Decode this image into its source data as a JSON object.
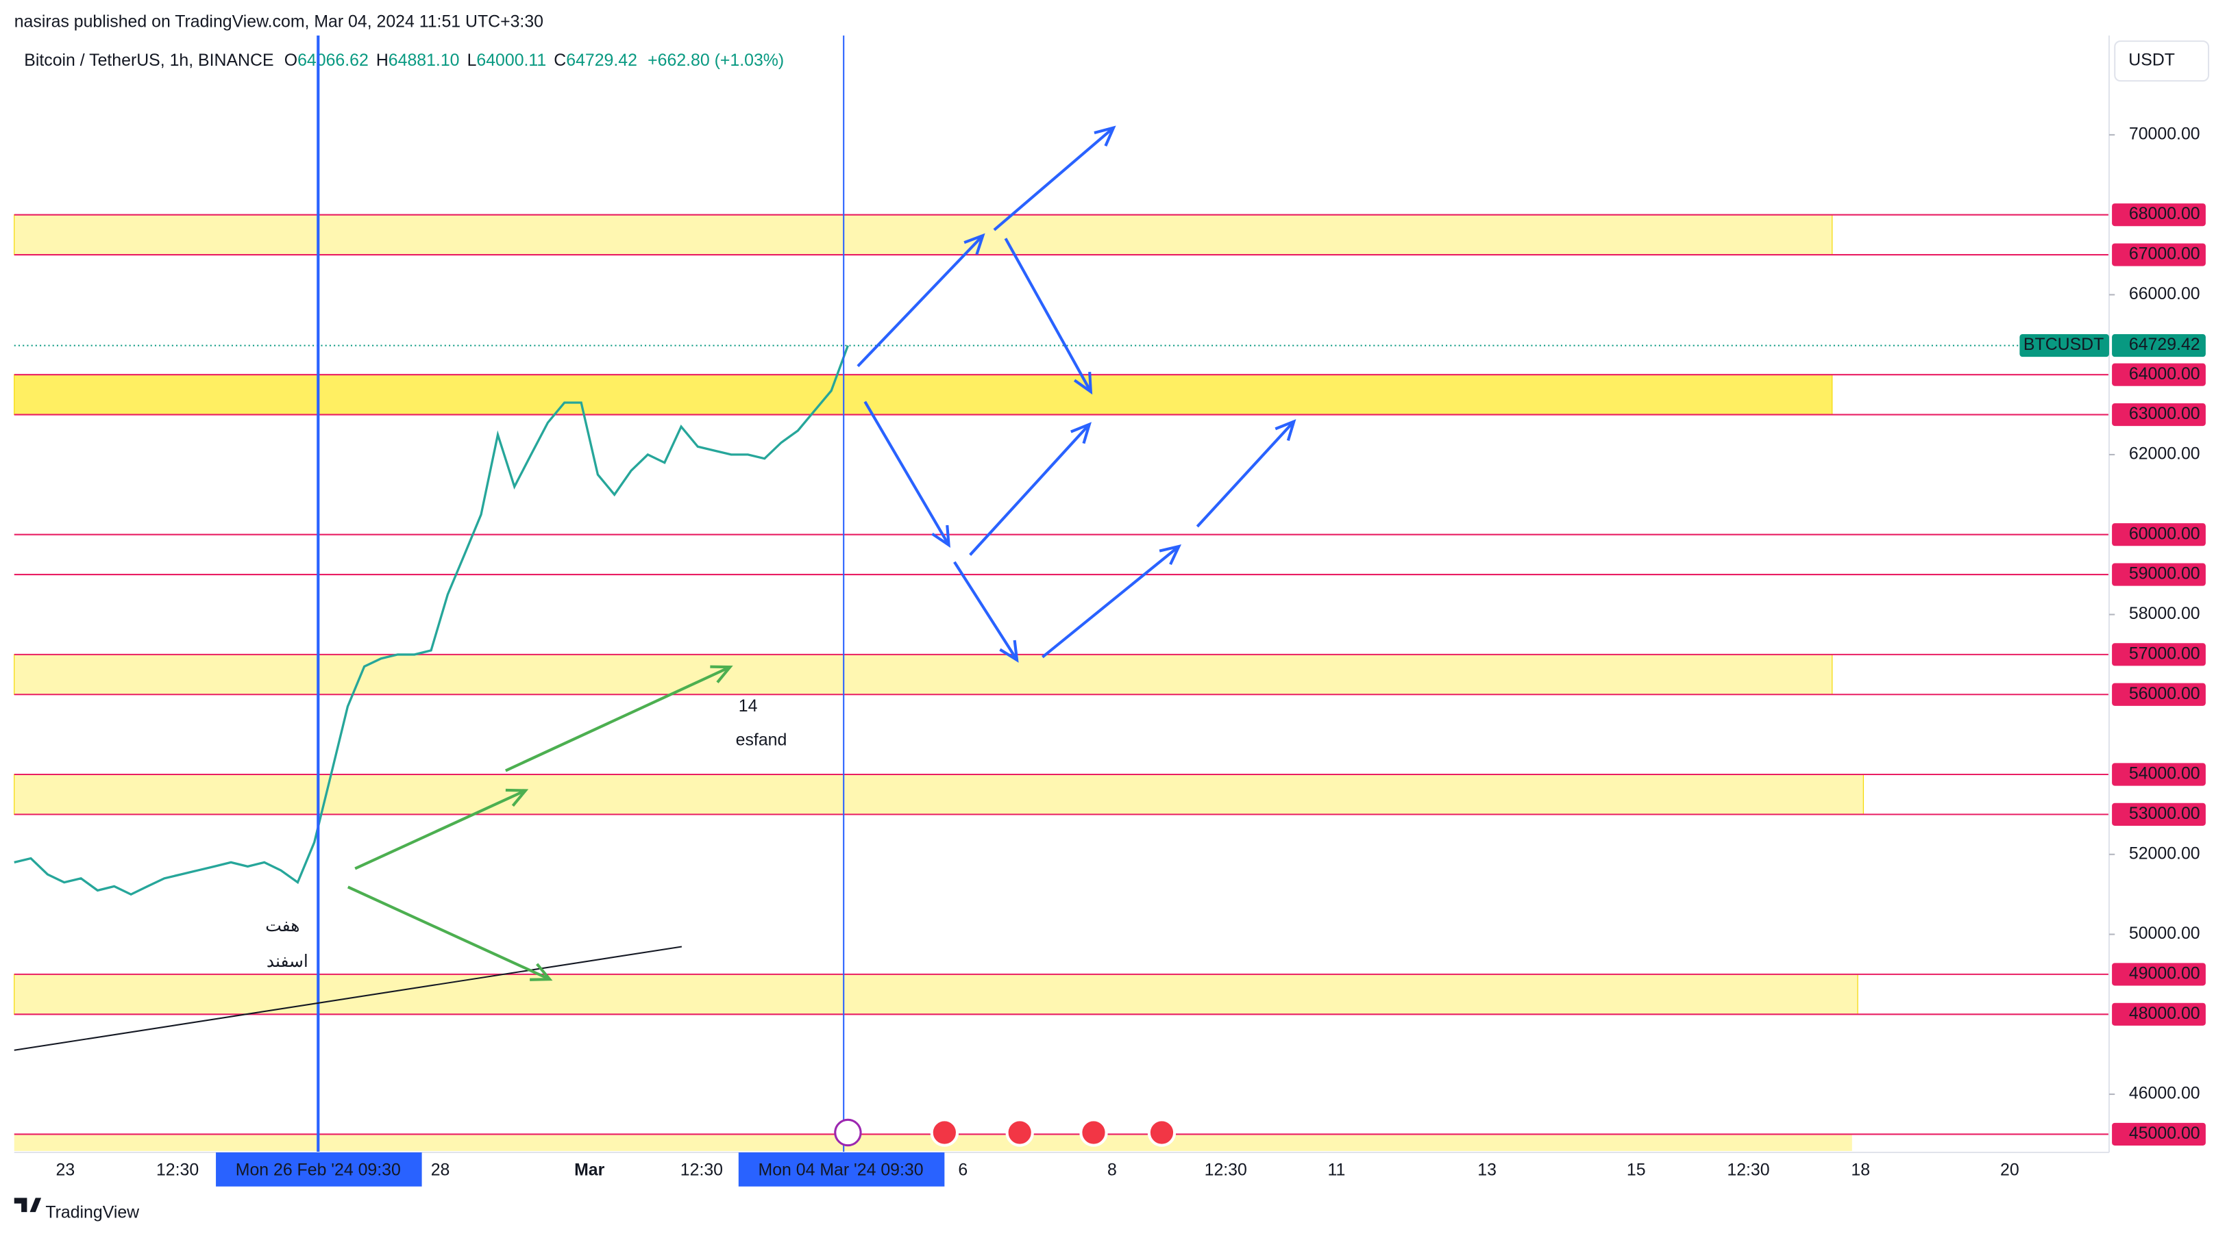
{
  "header": {
    "published": "nasiras published on TradingView.com, Mar 04, 2024 11:51 UTC+3:30"
  },
  "legend": {
    "symbol": "Bitcoin / TetherUS, 1h, BINANCE",
    "o_label": "O",
    "open": "64066.62",
    "h_label": "H",
    "high": "64881.10",
    "l_label": "L",
    "low": "64000.11",
    "c_label": "C",
    "close": "64729.42",
    "change": "+662.80 (+1.03%)"
  },
  "currency": "USDT",
  "yticks": [
    {
      "value": 70000,
      "label": "70000.00"
    },
    {
      "value": 66000,
      "label": "66000.00"
    },
    {
      "value": 62000,
      "label": "62000.00"
    },
    {
      "value": 58000,
      "label": "58000.00"
    },
    {
      "value": 52000,
      "label": "52000.00"
    },
    {
      "value": 50000,
      "label": "50000.00"
    },
    {
      "value": 46000,
      "label": "46000.00"
    }
  ],
  "levels": [
    {
      "value": 68000,
      "label": "68000.00"
    },
    {
      "value": 67000,
      "label": "67000.00"
    },
    {
      "value": 64000,
      "label": "64000.00"
    },
    {
      "value": 63000,
      "label": "63000.00"
    },
    {
      "value": 60000,
      "label": "60000.00"
    },
    {
      "value": 59000,
      "label": "59000.00"
    },
    {
      "value": 57000,
      "label": "57000.00"
    },
    {
      "value": 56000,
      "label": "56000.00"
    },
    {
      "value": 54000,
      "label": "54000.00"
    },
    {
      "value": 53000,
      "label": "53000.00"
    },
    {
      "value": 49000,
      "label": "49000.00"
    },
    {
      "value": 48000,
      "label": "48000.00"
    },
    {
      "value": 45000,
      "label": "45000.00"
    }
  ],
  "current": {
    "symbol": "BTCUSDT",
    "price": {
      "value": 64729.42,
      "label": "64729.42"
    }
  },
  "xlabels": [
    "23",
    "12:30",
    "28",
    "Mar",
    "12:30",
    "6",
    "8",
    "12:30",
    "11",
    "13",
    "15",
    "12:30",
    "18",
    "20"
  ],
  "crosshair_labels": [
    "Mon 26 Feb '24  09:30",
    "Mon 04 Mar '24  09:30"
  ],
  "annotations": {
    "persian": [
      "هفت",
      "اسفند"
    ],
    "esfand": [
      "14",
      "esfand"
    ]
  },
  "price_trace": {
    "values": [
      51800,
      51900,
      51500,
      51300,
      51400,
      51100,
      51200,
      51000,
      51200,
      51400,
      51500,
      51600,
      51700,
      51800,
      51700,
      51800,
      51600,
      51300,
      52300,
      54000,
      55700,
      56700,
      56900,
      57000,
      57000,
      57100,
      58500,
      59500,
      60500,
      62500,
      61200,
      62000,
      62800,
      63300,
      63300,
      61500,
      61000,
      61600,
      62000,
      61800,
      62700,
      62200,
      62100,
      62000,
      62000,
      61900,
      62300,
      62600,
      63100,
      63600,
      64729.42
    ]
  },
  "footer": {
    "brand": "TradingView"
  }
}
